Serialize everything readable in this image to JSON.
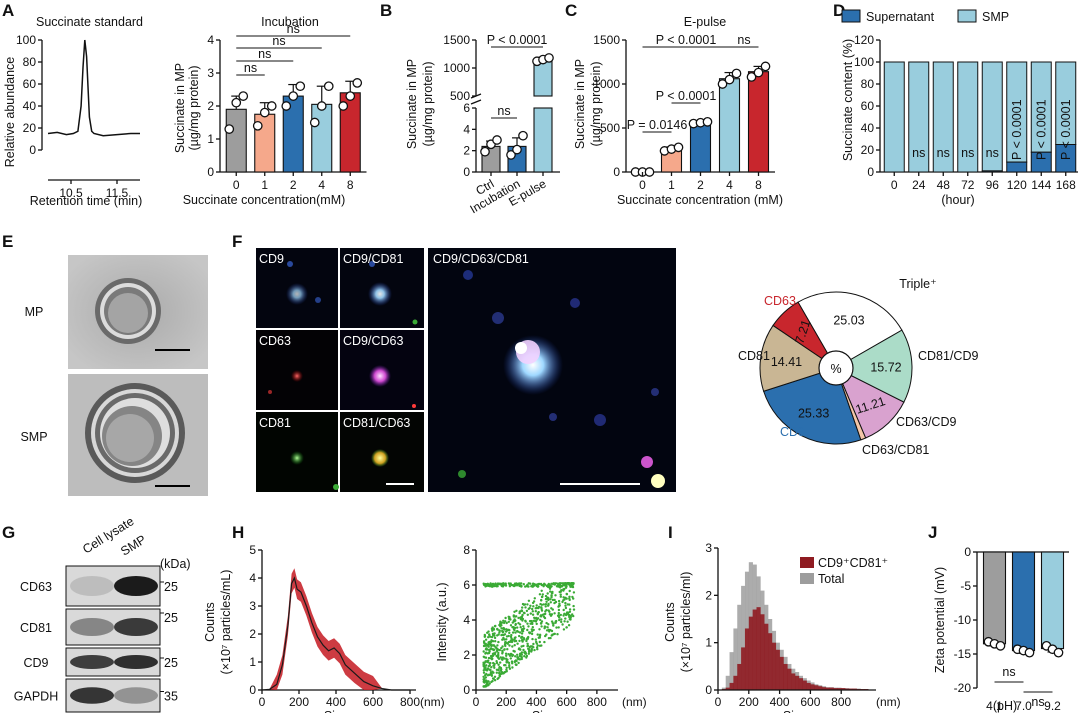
{
  "panel_letters": {
    "A": "A",
    "B": "B",
    "C": "C",
    "D": "D",
    "E": "E",
    "F": "F",
    "G": "G",
    "H": "H",
    "I": "I",
    "J": "J"
  },
  "colors": {
    "gray": "#9d9d9d",
    "salmon": "#f5a88b",
    "blue": "#2b6fae",
    "lightblue": "#99cddd",
    "red": "#c8262d",
    "darkred": "#8f1b21",
    "green": "#3aaa35",
    "mint": "#abdcc8",
    "tan": "#c9b694",
    "pink": "#d9a2cf",
    "peach": "#f3c6a8"
  },
  "chart_data": [
    {
      "id": "A-standard",
      "type": "line",
      "title": "Succinate standard",
      "xlabel": "Retention time (min)",
      "ylabel": "Relative abundance",
      "xlim": [
        10.0,
        12.0
      ],
      "ylim": [
        0,
        100
      ],
      "xticks": [
        "10.5",
        "11.5"
      ],
      "yticks": [
        "0",
        "20",
        "40",
        "60",
        "80",
        "100"
      ],
      "x": [
        10.0,
        10.2,
        10.4,
        10.55,
        10.65,
        10.72,
        10.76,
        10.8,
        10.84,
        10.9,
        10.95,
        11.0,
        11.2,
        11.5,
        11.8,
        12.0
      ],
      "y": [
        15,
        16,
        14,
        15,
        17,
        40,
        75,
        100,
        85,
        30,
        17,
        15,
        13,
        14,
        15,
        15
      ]
    },
    {
      "id": "A-incubation",
      "type": "bar",
      "title": "Incubation",
      "xlabel": "Succinate concentration(mM)",
      "ylabel": "Succinate in MP (µg/mg protein)",
      "ylim": [
        0,
        4
      ],
      "yticks": [
        "0",
        "1",
        "2",
        "3",
        "4"
      ],
      "categories": [
        "0",
        "1",
        "2",
        "4",
        "8"
      ],
      "values": [
        1.9,
        1.75,
        2.3,
        2.05,
        2.4
      ],
      "errors": [
        0.4,
        0.35,
        0.35,
        0.55,
        0.35
      ],
      "points": [
        [
          1.3,
          2.1,
          2.3
        ],
        [
          1.4,
          1.8,
          2.0
        ],
        [
          2.0,
          2.3,
          2.6
        ],
        [
          1.5,
          2.0,
          2.6
        ],
        [
          2.0,
          2.3,
          2.7
        ]
      ],
      "bar_colors": [
        "#9d9d9d",
        "#f5a88b",
        "#2b6fae",
        "#99cddd",
        "#c8262d"
      ],
      "comparisons": [
        {
          "from": "0",
          "to": "1",
          "label": "ns"
        },
        {
          "from": "0",
          "to": "2",
          "label": "ns"
        },
        {
          "from": "0",
          "to": "4",
          "label": "ns"
        },
        {
          "from": "0",
          "to": "8",
          "label": "ns"
        }
      ]
    },
    {
      "id": "B",
      "type": "bar",
      "xlabel": "",
      "ylabel": "Succinate in MP (µg/mg protein)",
      "axis_break": true,
      "yticks_lower": [
        "0",
        "2",
        "4",
        "6"
      ],
      "yticks_upper": [
        "500",
        "1000",
        "1500"
      ],
      "categories": [
        "Ctrl",
        "Incubation",
        "E-pulse"
      ],
      "values": [
        2.4,
        2.4,
        1150
      ],
      "errors": [
        0.5,
        0.8,
        40
      ],
      "points": [
        [
          1.9,
          2.6,
          3.0
        ],
        [
          1.6,
          2.1,
          3.4
        ],
        [
          1120,
          1150,
          1180
        ]
      ],
      "bar_colors": [
        "#9d9d9d",
        "#2b6fae",
        "#99cddd"
      ],
      "comparisons": [
        {
          "from": "Ctrl",
          "to": "Incubation",
          "label": "ns"
        },
        {
          "from": "Ctrl",
          "to": "E-pulse",
          "label": "P < 0.0001"
        }
      ]
    },
    {
      "id": "C",
      "type": "bar",
      "title": "E-pulse",
      "xlabel": "Succinate concentration (mM)",
      "ylabel": "Succinate in MP (µg/mg protein)",
      "ylim": [
        0,
        1500
      ],
      "yticks": [
        "0",
        "500",
        "1000",
        "1500"
      ],
      "categories": [
        "0",
        "1",
        "2",
        "4",
        "8"
      ],
      "values": [
        0,
        260,
        560,
        1060,
        1140
      ],
      "errors": [
        0,
        25,
        15,
        70,
        60
      ],
      "points": [
        [
          0,
          0,
          0
        ],
        [
          240,
          260,
          280
        ],
        [
          550,
          560,
          570
        ],
        [
          1000,
          1050,
          1120
        ],
        [
          1080,
          1130,
          1200
        ]
      ],
      "bar_colors": [
        "#9d9d9d",
        "#f5a88b",
        "#2b6fae",
        "#99cddd",
        "#c8262d"
      ],
      "comparisons": [
        {
          "from": "0",
          "to": "1",
          "label": "P = 0.0146"
        },
        {
          "from": "1",
          "to": "2",
          "label": "P < 0.0001"
        },
        {
          "from": "0",
          "to": "4",
          "label": "P < 0.0001"
        },
        {
          "from": "4",
          "to": "8",
          "label": "ns"
        }
      ]
    },
    {
      "id": "D",
      "type": "bar",
      "xlabel": "(hour)",
      "ylabel": "Succinate content (%)",
      "ylim": [
        0,
        120
      ],
      "yticks": [
        "0",
        "20",
        "40",
        "60",
        "80",
        "100",
        "120"
      ],
      "categories": [
        "0",
        "24",
        "48",
        "72",
        "96",
        "120",
        "144",
        "168"
      ],
      "series": [
        {
          "name": "Supernatant",
          "values": [
            0,
            0,
            0,
            0,
            1,
            9,
            18,
            25
          ],
          "color": "#2b6fae"
        },
        {
          "name": "SMP",
          "values": [
            100,
            100,
            100,
            100,
            99,
            91,
            82,
            75
          ],
          "color": "#99cddd"
        }
      ],
      "annotations": [
        "",
        "ns",
        "ns",
        "ns",
        "ns",
        "P < 0.0001",
        "P < 0.0001",
        "P < 0.0001"
      ]
    },
    {
      "id": "F-pie",
      "type": "pie",
      "center_label": "%",
      "slices": [
        {
          "name": "Triple⁺",
          "value": 25.03,
          "color": "#ffffff",
          "label": "25.03"
        },
        {
          "name": "CD81/CD9",
          "value": 15.72,
          "color": "#abdcc8",
          "label": "15.72"
        },
        {
          "name": "CD63/CD9",
          "value": 11.21,
          "color": "#d9a2cf",
          "label": "11.21"
        },
        {
          "name": "CD63/CD81",
          "value": 1.09,
          "color": "#f3c6a8",
          "label": ""
        },
        {
          "name": "CD9",
          "value": 25.33,
          "color": "#2b6fae",
          "label": "25.33"
        },
        {
          "name": "CD81",
          "value": 14.41,
          "color": "#c9b694",
          "label": "14.41"
        },
        {
          "name": "CD63",
          "value": 7.21,
          "color": "#c8262d",
          "label": "7.21"
        }
      ]
    },
    {
      "id": "H-size",
      "type": "line",
      "xlabel": "Size",
      "xunit": "(nm)",
      "ylabel": "Counts (×10⁷ particles/mL)",
      "xlim": [
        0,
        800
      ],
      "ylim": [
        0,
        5
      ],
      "xticks": [
        "0",
        "200",
        "400",
        "600",
        "800"
      ],
      "yticks": [
        "0",
        "1",
        "2",
        "3",
        "4",
        "5"
      ],
      "x": [
        0,
        40,
        80,
        110,
        140,
        160,
        175,
        190,
        210,
        240,
        270,
        300,
        330,
        360,
        390,
        420,
        450,
        500,
        550,
        600,
        650,
        700,
        800
      ],
      "y": [
        0,
        0.02,
        0.2,
        0.9,
        2.3,
        3.8,
        4.0,
        3.6,
        3.5,
        3.0,
        2.4,
        1.9,
        1.6,
        1.4,
        1.5,
        1.3,
        0.9,
        0.6,
        0.3,
        0.15,
        0.05,
        0,
        0
      ],
      "band": 0.35
    },
    {
      "id": "H-scatter",
      "type": "scatter",
      "xlabel": "Size",
      "xunit": "(nm)",
      "ylabel": "Intensity (a.u.)",
      "xlim": [
        0,
        900
      ],
      "ylim": [
        0,
        8
      ],
      "xticks": [
        "0",
        "200",
        "400",
        "600",
        "800"
      ],
      "yticks": [
        "0",
        "2",
        "4",
        "6",
        "8"
      ],
      "color": "#3aaa35"
    },
    {
      "id": "I",
      "type": "bar",
      "xlabel": "Size",
      "xunit": "(nm)",
      "ylabel": "Counts (×10⁷ particles/ml)",
      "xlim": [
        0,
        1000
      ],
      "ylim": [
        0,
        3
      ],
      "xticks": [
        "0",
        "200",
        "400",
        "600",
        "800"
      ],
      "yticks": [
        "0",
        "1",
        "2",
        "3"
      ],
      "series": [
        {
          "name": "CD9⁺CD81⁺",
          "color": "#8f1b21",
          "values": [
            0,
            0.02,
            0.05,
            0.15,
            0.3,
            0.55,
            0.9,
            1.3,
            1.55,
            1.7,
            1.75,
            1.6,
            1.4,
            1.2,
            1.0,
            0.85,
            0.7,
            0.55,
            0.45,
            0.35,
            0.3,
            0.25,
            0.2,
            0.15,
            0.12,
            0.1,
            0.08,
            0.06,
            0.05,
            0.05,
            0.04,
            0.04,
            0.04,
            0.03,
            0.03,
            0.03,
            0.02,
            0.02,
            0.02,
            0.01
          ]
        },
        {
          "name": "Total",
          "color": "#9d9d9d",
          "values": [
            0,
            0.05,
            0.3,
            0.8,
            1.3,
            1.8,
            2.2,
            2.5,
            2.7,
            2.65,
            2.4,
            2.1,
            1.8,
            1.5,
            1.25,
            1.0,
            0.85,
            0.7,
            0.55,
            0.45,
            0.38,
            0.3,
            0.25,
            0.2,
            0.16,
            0.12,
            0.1,
            0.08,
            0.06,
            0.06,
            0.05,
            0.05,
            0.04,
            0.04,
            0.03,
            0.03,
            0.03,
            0.02,
            0.02,
            0.01
          ]
        }
      ]
    },
    {
      "id": "J",
      "type": "bar",
      "xlabel": "(pH)",
      "ylabel": "Zeta potential (mV)",
      "ylim": [
        -20,
        0
      ],
      "yticks": [
        "0",
        "-5",
        "-10",
        "-15",
        "-20"
      ],
      "categories": [
        "4.1",
        "7.0",
        "9.2"
      ],
      "values": [
        -13.5,
        -14.5,
        -14.2
      ],
      "errors": [
        0.3,
        0.4,
        0.5
      ],
      "points": [
        [
          -13.2,
          -13.5,
          -13.8
        ],
        [
          -14.3,
          -14.5,
          -14.8
        ],
        [
          -13.8,
          -14.3,
          -14.8
        ]
      ],
      "bar_colors": [
        "#9d9d9d",
        "#2b6fae",
        "#99cddd"
      ],
      "comparisons": [
        {
          "from": "4.1",
          "to": "7.0",
          "label": "ns"
        },
        {
          "from": "7.0",
          "to": "9.2",
          "label": "ns"
        }
      ]
    }
  ],
  "panel_E": {
    "rows": [
      "MP",
      "SMP"
    ]
  },
  "panel_F": {
    "tiles": [
      "CD9",
      "CD9/CD81",
      "CD63",
      "CD9/CD63",
      "CD81",
      "CD81/CD63"
    ],
    "big": "CD9/CD63/CD81"
  },
  "panel_G": {
    "columns": [
      "Cell lysate",
      "SMP"
    ],
    "unit": "(kDa)",
    "rows": [
      {
        "label": "CD63",
        "kda": "25"
      },
      {
        "label": "CD81",
        "kda": "25"
      },
      {
        "label": "CD9",
        "kda": "25"
      },
      {
        "label": "GAPDH",
        "kda": "35"
      }
    ]
  }
}
